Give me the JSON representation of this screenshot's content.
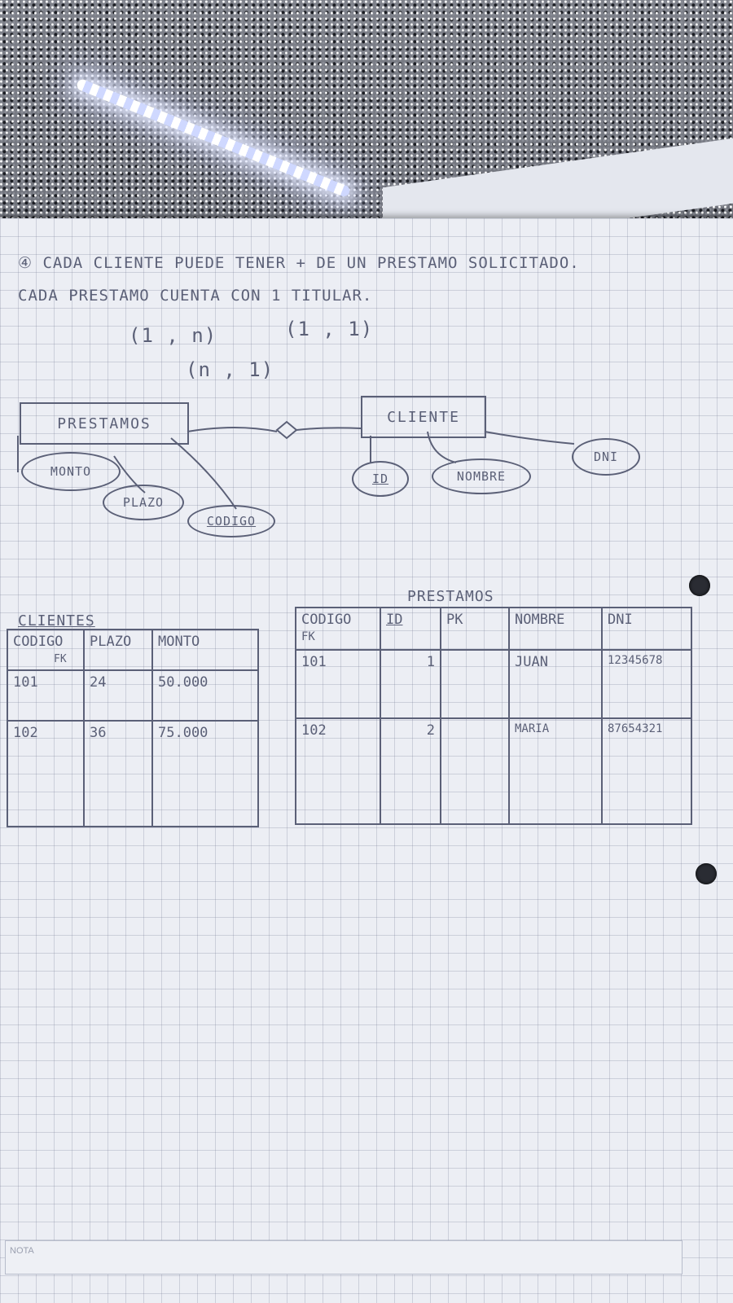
{
  "statement": {
    "line1": "④ CADA CLIENTE PUEDE TENER + DE UN PRESTAMO SOLICITADO.",
    "line2": "CADA PRESTAMO CUENTA CON 1 TITULAR."
  },
  "cardinalities": {
    "left": "(1 , n)",
    "right": "(1 , 1)",
    "relation": "(n , 1)"
  },
  "er": {
    "entity_prestamos": "PRESTAMOS",
    "entity_cliente": "CLIENTE",
    "prestamos_attrs": [
      "MONTO",
      "PLAZO",
      "CODIGO"
    ],
    "cliente_attrs": [
      "ID",
      "NOMBRE",
      "DNI"
    ]
  },
  "table_clientes": {
    "title": "CLIENTES",
    "headers": [
      "CODIGO",
      "PLAZO",
      "MONTO"
    ],
    "fk_note": "FK",
    "rows": [
      [
        "101",
        "24",
        "50.000"
      ],
      [
        "102",
        "36",
        "75.000"
      ]
    ]
  },
  "table_prestamos": {
    "title": "PRESTAMOS",
    "headers": [
      "CODIGO",
      "ID",
      "PK",
      "NOMBRE",
      "DNI"
    ],
    "fk_note": "FK",
    "rows": [
      [
        "101",
        "1",
        "",
        "JUAN",
        "12345678"
      ],
      [
        "102",
        "2",
        "",
        "MARIA",
        "87654321"
      ]
    ]
  },
  "footer": {
    "nota_label": "NOTA"
  }
}
